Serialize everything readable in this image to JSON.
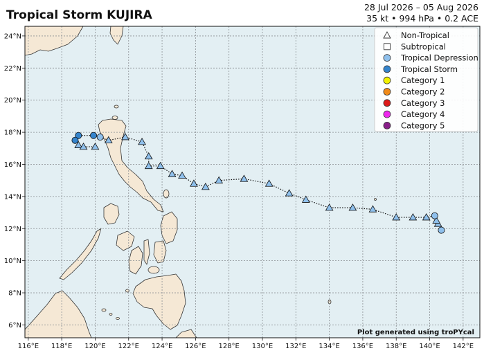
{
  "header": {
    "title": "Tropical Storm KUJIRA",
    "dates": "28 Jul 2026 – 05 Aug 2026",
    "stats": "35 kt • 994 hPa • 0.2 ACE"
  },
  "credit": "Plot generated using troPYcal",
  "map": {
    "lon_range": [
      115.8,
      143.0
    ],
    "lat_range": [
      5.2,
      24.6
    ],
    "lon_ticks": [
      116,
      118,
      120,
      122,
      124,
      126,
      128,
      130,
      132,
      134,
      136,
      138,
      140,
      142
    ],
    "lat_ticks": [
      6,
      8,
      10,
      12,
      14,
      16,
      18,
      20,
      22,
      24
    ],
    "lon_tick_labels": [
      "116°E",
      "118°E",
      "120°E",
      "122°E",
      "124°E",
      "126°E",
      "128°E",
      "130°E",
      "132°E",
      "134°E",
      "136°E",
      "138°E",
      "140°E",
      "142°E"
    ],
    "lat_tick_labels": [
      "6°N",
      "8°N",
      "10°N",
      "12°N",
      "14°N",
      "16°N",
      "18°N",
      "20°N",
      "22°N",
      "24°N"
    ],
    "ocean_color": "#e3eff3",
    "land_color": "#f5e8d5",
    "grid_color": "#8a8f93"
  },
  "legend": {
    "items": [
      {
        "label": "Non-Tropical",
        "marker": "triangle-open",
        "color": "#ffffff"
      },
      {
        "label": "Subtropical",
        "marker": "square-open",
        "color": "#ffffff"
      },
      {
        "label": "Tropical Depression",
        "marker": "circle",
        "color": "#8fc0ec"
      },
      {
        "label": "Tropical Storm",
        "marker": "circle",
        "color": "#3584cc"
      },
      {
        "label": "Category 1",
        "marker": "circle",
        "color": "#f2f200"
      },
      {
        "label": "Category 2",
        "marker": "circle",
        "color": "#f08a18"
      },
      {
        "label": "Category 3",
        "marker": "circle",
        "color": "#dd1a1a"
      },
      {
        "label": "Category 4",
        "marker": "circle",
        "color": "#ee28ee"
      },
      {
        "label": "Category 5",
        "marker": "circle",
        "color": "#881e88"
      }
    ]
  },
  "track": [
    {
      "lon": 140.7,
      "lat": 11.9,
      "type": "td"
    },
    {
      "lon": 140.5,
      "lat": 12.3,
      "type": "nt"
    },
    {
      "lon": 140.4,
      "lat": 12.5,
      "type": "nt"
    },
    {
      "lon": 140.3,
      "lat": 12.8,
      "type": "td"
    },
    {
      "lon": 139.8,
      "lat": 12.7,
      "type": "nt"
    },
    {
      "lon": 139.0,
      "lat": 12.7,
      "type": "nt"
    },
    {
      "lon": 138.0,
      "lat": 12.7,
      "type": "nt"
    },
    {
      "lon": 136.6,
      "lat": 13.2,
      "type": "nt"
    },
    {
      "lon": 135.4,
      "lat": 13.3,
      "type": "nt"
    },
    {
      "lon": 134.0,
      "lat": 13.3,
      "type": "nt"
    },
    {
      "lon": 132.6,
      "lat": 13.8,
      "type": "nt"
    },
    {
      "lon": 131.6,
      "lat": 14.2,
      "type": "nt"
    },
    {
      "lon": 130.4,
      "lat": 14.8,
      "type": "nt"
    },
    {
      "lon": 128.9,
      "lat": 15.1,
      "type": "nt"
    },
    {
      "lon": 127.4,
      "lat": 15.0,
      "type": "nt"
    },
    {
      "lon": 126.6,
      "lat": 14.6,
      "type": "nt"
    },
    {
      "lon": 125.9,
      "lat": 14.8,
      "type": "nt"
    },
    {
      "lon": 125.2,
      "lat": 15.3,
      "type": "nt"
    },
    {
      "lon": 124.6,
      "lat": 15.4,
      "type": "nt"
    },
    {
      "lon": 123.9,
      "lat": 15.9,
      "type": "nt"
    },
    {
      "lon": 123.2,
      "lat": 15.9,
      "type": "nt"
    },
    {
      "lon": 123.2,
      "lat": 16.5,
      "type": "nt"
    },
    {
      "lon": 122.8,
      "lat": 17.4,
      "type": "nt"
    },
    {
      "lon": 121.8,
      "lat": 17.7,
      "type": "nt"
    },
    {
      "lon": 120.8,
      "lat": 17.5,
      "type": "nt"
    },
    {
      "lon": 120.3,
      "lat": 17.7,
      "type": "td"
    },
    {
      "lon": 119.9,
      "lat": 17.8,
      "type": "ts"
    },
    {
      "lon": 119.0,
      "lat": 17.8,
      "type": "ts"
    },
    {
      "lon": 118.8,
      "lat": 17.5,
      "type": "ts"
    },
    {
      "lon": 119.0,
      "lat": 17.2,
      "type": "nt"
    },
    {
      "lon": 119.3,
      "lat": 17.1,
      "type": "nt"
    },
    {
      "lon": 120.0,
      "lat": 17.1,
      "type": "nt"
    }
  ],
  "track_colors": {
    "td": "#8fc0ec",
    "ts": "#3584cc",
    "nt": "#8fc0ec"
  }
}
